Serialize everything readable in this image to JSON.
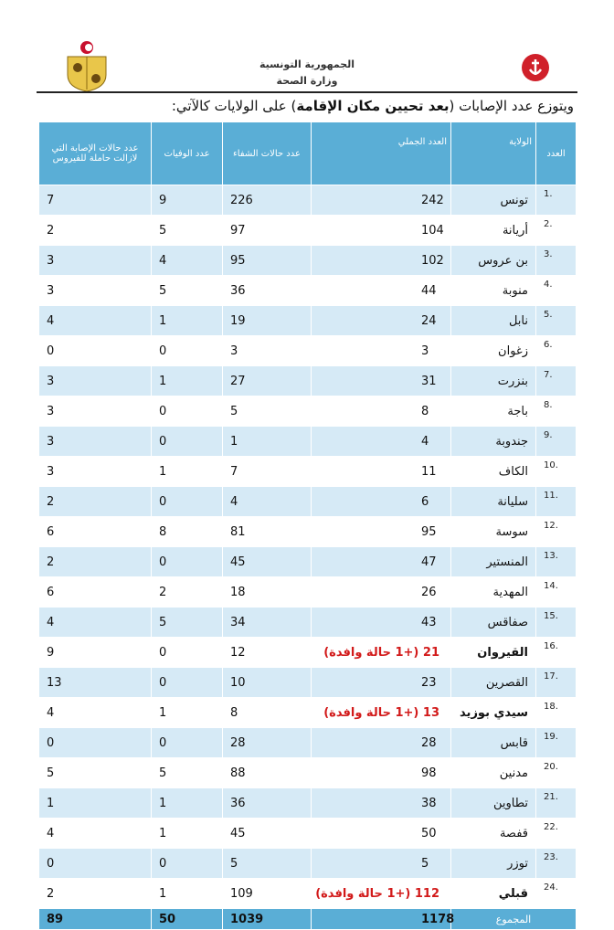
{
  "header": {
    "country": "الجمهورية التونسية",
    "ministry": "وزارة الصحة"
  },
  "title": {
    "prefix": "ويتوزع عدد الإصابات (",
    "bold": "بعد تحيين مكان الإقامة",
    "suffix": ") على الولايات كالآتي:"
  },
  "table": {
    "headers": [
      "العدد",
      "الولاية",
      "العدد الجملي",
      "عدد حالات الشفاء",
      "عدد الوفيات",
      "عدد حالات الإصابة التي لازالت حاملة للفيروس"
    ],
    "rows": [
      [
        "1.",
        "تونس",
        242,
        226,
        9,
        7
      ],
      [
        "2.",
        "أريانة",
        104,
        97,
        5,
        2
      ],
      [
        "3.",
        "بن عروس",
        102,
        95,
        4,
        3
      ],
      [
        "4.",
        "منوبة",
        44,
        36,
        5,
        3
      ],
      [
        "5.",
        "نابل",
        24,
        19,
        1,
        4
      ],
      [
        "6.",
        "زغوان",
        3,
        3,
        0,
        0
      ],
      [
        "7.",
        "بنزرت",
        31,
        27,
        1,
        3
      ],
      [
        "8.",
        "باجة",
        8,
        5,
        0,
        3
      ],
      [
        "9.",
        "جندوبة",
        4,
        1,
        0,
        3
      ],
      [
        "10.",
        "الكاف",
        11,
        7,
        1,
        3
      ],
      [
        "11.",
        "سليانة",
        6,
        4,
        0,
        2
      ],
      [
        "12.",
        "سوسة",
        95,
        81,
        8,
        6
      ],
      [
        "13.",
        "المنستير",
        47,
        45,
        0,
        2
      ],
      [
        "14.",
        "المهدية",
        26,
        18,
        2,
        6
      ],
      [
        "15.",
        "صفاقس",
        43,
        34,
        5,
        4
      ],
      [
        "16.",
        "القيروان",
        "21 (+1 حالة وافدة)",
        12,
        0,
        9
      ],
      [
        "17.",
        "القصرين",
        23,
        10,
        0,
        13
      ],
      [
        "18.",
        "سيدي بوزيد",
        "13 (+1 حالة وافدة)",
        8,
        1,
        4
      ],
      [
        "19.",
        "قابس",
        28,
        28,
        0,
        0
      ],
      [
        "20.",
        "مدنين",
        98,
        88,
        5,
        5
      ],
      [
        "21.",
        "تطاوين",
        38,
        36,
        1,
        1
      ],
      [
        "22.",
        "قفصة",
        50,
        45,
        1,
        4
      ],
      [
        "23.",
        "توزر",
        5,
        5,
        0,
        0
      ],
      [
        "24.",
        "قبلي",
        "112 (+1 حالة وافدة)",
        109,
        1,
        2
      ]
    ],
    "total": [
      "المجموع",
      1178,
      1039,
      50,
      89
    ]
  }
}
